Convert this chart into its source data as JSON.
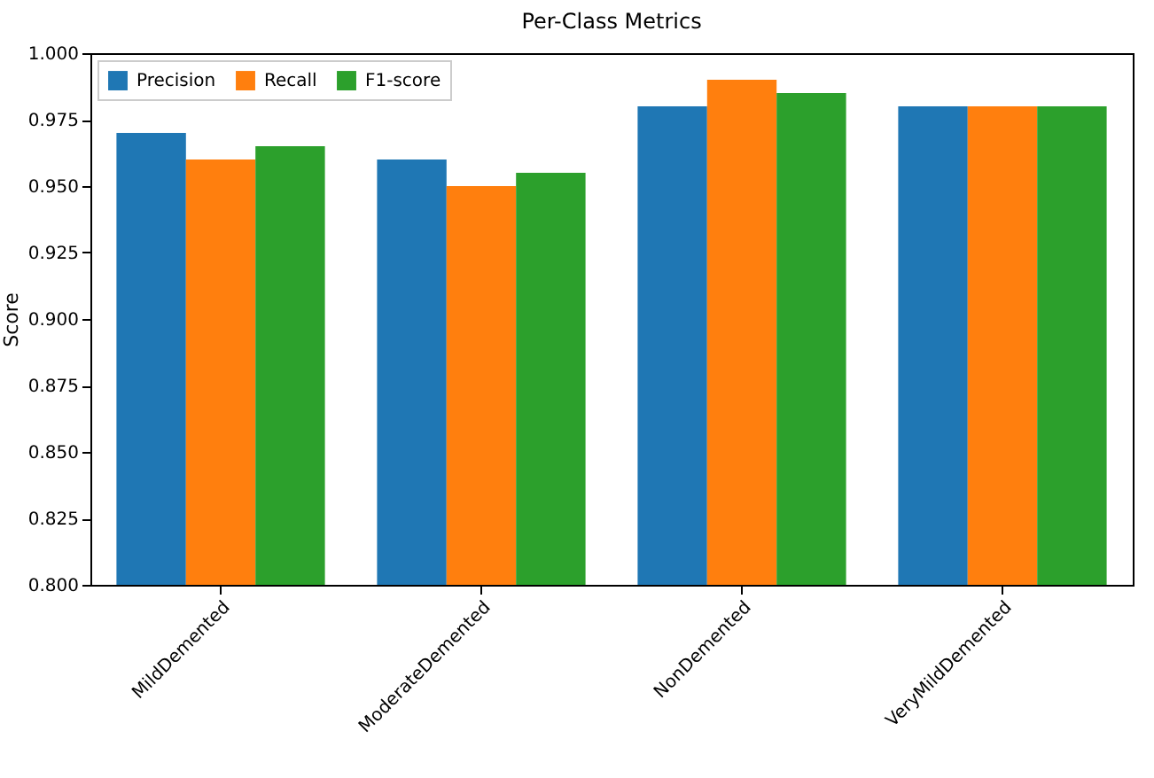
{
  "chart_data": {
    "type": "bar",
    "title": "Per-Class Metrics",
    "ylabel": "Score",
    "categories": [
      "MildDemented",
      "ModerateDemented",
      "NonDemented",
      "VeryMildDemented"
    ],
    "series": [
      {
        "name": "Precision",
        "color": "#1f77b4",
        "values": [
          0.97,
          0.96,
          0.98,
          0.98
        ]
      },
      {
        "name": "Recall",
        "color": "#ff7f0e",
        "values": [
          0.96,
          0.95,
          0.99,
          0.98
        ]
      },
      {
        "name": "F1-score",
        "color": "#2ca02c",
        "values": [
          0.965,
          0.955,
          0.985,
          0.98
        ]
      }
    ],
    "ylim": [
      0.8,
      1.0
    ],
    "yticks": [
      {
        "value": 0.8,
        "label": "0.800"
      },
      0.825,
      {
        "value": 0.85,
        "label": "0.850"
      },
      0.875,
      {
        "value": 0.9,
        "label": "0.900"
      },
      0.925,
      {
        "value": 0.95,
        "label": "0.950"
      },
      0.975,
      {
        "value": 1.0,
        "label": "1.000"
      }
    ],
    "legend": "top left"
  }
}
